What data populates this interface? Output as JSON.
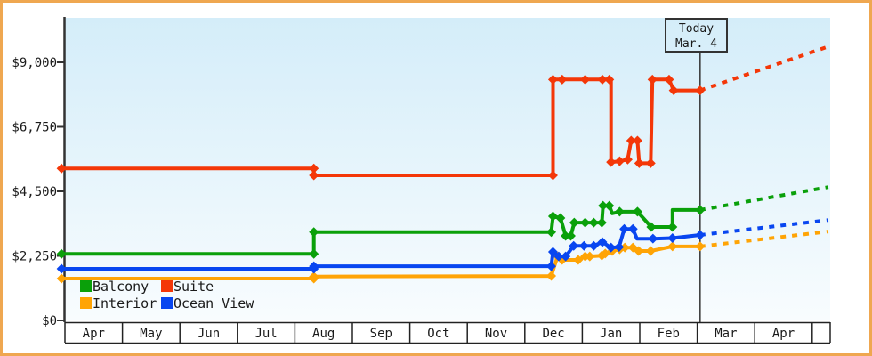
{
  "chart_data": {
    "type": "line",
    "y_axis": {
      "ticks": [
        {
          "label": "$9,000",
          "value": 9000
        },
        {
          "label": "$6,750",
          "value": 6750
        },
        {
          "label": "$4,500",
          "value": 4500
        },
        {
          "label": "$2,250",
          "value": 2250
        },
        {
          "label": "$0",
          "value": 0
        }
      ],
      "range": [
        0,
        10500
      ]
    },
    "x_axis": {
      "months": [
        "Apr",
        "May",
        "Jun",
        "Jul",
        "Aug",
        "Sep",
        "Oct",
        "Nov",
        "Dec",
        "Jan",
        "Feb",
        "Mar",
        "Apr"
      ]
    },
    "today": {
      "line1": "Today",
      "line2": "Mar. 4",
      "month_offset": 11.05
    },
    "legend": [
      {
        "label": "Balcony",
        "color": "#0aa00a"
      },
      {
        "label": "Suite",
        "color": "#f43708"
      },
      {
        "label": "Interior",
        "color": "#ffa405"
      },
      {
        "label": "Ocean View",
        "color": "#0846f0"
      }
    ],
    "series": [
      {
        "name": "Suite",
        "color": "#f43708",
        "solid": [
          [
            -0.06,
            5300,
            1
          ],
          [
            4.33,
            5300,
            1
          ],
          [
            4.33,
            5060,
            1
          ],
          [
            8.49,
            5060,
            1
          ],
          [
            8.49,
            8400,
            1
          ],
          [
            8.65,
            8400,
            1
          ],
          [
            9.05,
            8400,
            1
          ],
          [
            9.35,
            8400,
            1
          ],
          [
            9.47,
            8400,
            1
          ],
          [
            9.5,
            8400,
            0
          ],
          [
            9.5,
            5520,
            1
          ],
          [
            9.65,
            5550,
            1
          ],
          [
            9.79,
            5610,
            1
          ],
          [
            9.85,
            6270,
            1
          ],
          [
            9.96,
            6270,
            1
          ],
          [
            9.99,
            5480,
            1
          ],
          [
            10.19,
            5480,
            1
          ],
          [
            10.22,
            8400,
            1
          ],
          [
            10.51,
            8400,
            1
          ],
          [
            10.59,
            8020,
            1
          ],
          [
            11.05,
            8020,
            1
          ]
        ],
        "projection": [
          [
            11.05,
            8020
          ],
          [
            13.28,
            9550
          ]
        ]
      },
      {
        "name": "Balcony",
        "color": "#0aa00a",
        "solid": [
          [
            -0.06,
            2320,
            1
          ],
          [
            4.33,
            2320,
            1
          ],
          [
            4.33,
            3080,
            1
          ],
          [
            8.46,
            3080,
            1
          ],
          [
            8.49,
            3630,
            1
          ],
          [
            8.62,
            3570,
            1
          ],
          [
            8.71,
            2950,
            1
          ],
          [
            8.8,
            2950,
            1
          ],
          [
            8.86,
            3410,
            1
          ],
          [
            9.05,
            3410,
            1
          ],
          [
            9.2,
            3410,
            1
          ],
          [
            9.34,
            3410,
            1
          ],
          [
            9.36,
            4000,
            1
          ],
          [
            9.47,
            4000,
            1
          ],
          [
            9.52,
            3730,
            0
          ],
          [
            9.65,
            3790,
            1
          ],
          [
            9.96,
            3790,
            1
          ],
          [
            10.2,
            3260,
            1
          ],
          [
            10.57,
            3260,
            1
          ],
          [
            10.57,
            3850,
            0
          ],
          [
            11.05,
            3850,
            1
          ]
        ],
        "projection": [
          [
            11.05,
            3850
          ],
          [
            13.28,
            4650
          ]
        ]
      },
      {
        "name": "Interior",
        "color": "#ffa405",
        "solid": [
          [
            -0.06,
            1460,
            1
          ],
          [
            4.33,
            1460,
            1
          ],
          [
            4.33,
            1530,
            1
          ],
          [
            8.46,
            1550,
            1
          ],
          [
            8.57,
            2230,
            1
          ],
          [
            8.65,
            2110,
            1
          ],
          [
            8.93,
            2110,
            1
          ],
          [
            9.05,
            2230,
            1
          ],
          [
            9.13,
            2230,
            1
          ],
          [
            9.34,
            2260,
            1
          ],
          [
            9.4,
            2330,
            1
          ],
          [
            9.52,
            2420,
            1
          ],
          [
            9.65,
            2480,
            1
          ],
          [
            9.74,
            2540,
            1
          ],
          [
            9.88,
            2540,
            1
          ],
          [
            9.98,
            2420,
            1
          ],
          [
            10.19,
            2420,
            1
          ],
          [
            10.57,
            2580,
            1
          ],
          [
            11.05,
            2580,
            1
          ]
        ],
        "projection": [
          [
            11.05,
            2580
          ],
          [
            13.28,
            3100
          ]
        ]
      },
      {
        "name": "Ocean View",
        "color": "#0846f0",
        "solid": [
          [
            -0.06,
            1800,
            1
          ],
          [
            4.33,
            1800,
            1
          ],
          [
            4.33,
            1890,
            1
          ],
          [
            8.46,
            1890,
            1
          ],
          [
            8.49,
            2390,
            1
          ],
          [
            8.59,
            2230,
            1
          ],
          [
            8.71,
            2230,
            1
          ],
          [
            8.85,
            2600,
            1
          ],
          [
            9.03,
            2600,
            1
          ],
          [
            9.2,
            2600,
            1
          ],
          [
            9.35,
            2730,
            1
          ],
          [
            9.5,
            2540,
            1
          ],
          [
            9.64,
            2560,
            1
          ],
          [
            9.73,
            3190,
            1
          ],
          [
            9.88,
            3190,
            1
          ],
          [
            9.95,
            2850,
            0
          ],
          [
            10.23,
            2850,
            1
          ],
          [
            10.57,
            2870,
            1
          ],
          [
            11.05,
            2980,
            1
          ]
        ],
        "projection": [
          [
            11.05,
            2980
          ],
          [
            13.28,
            3500
          ]
        ]
      }
    ],
    "colors": {
      "frame_border": "#efa750",
      "axis": "#333333",
      "today_line": "#333333",
      "plot_gradient_top": "#d4edf9",
      "plot_gradient_bottom": "#f8fcfe",
      "text": "#1a1a1a"
    }
  }
}
